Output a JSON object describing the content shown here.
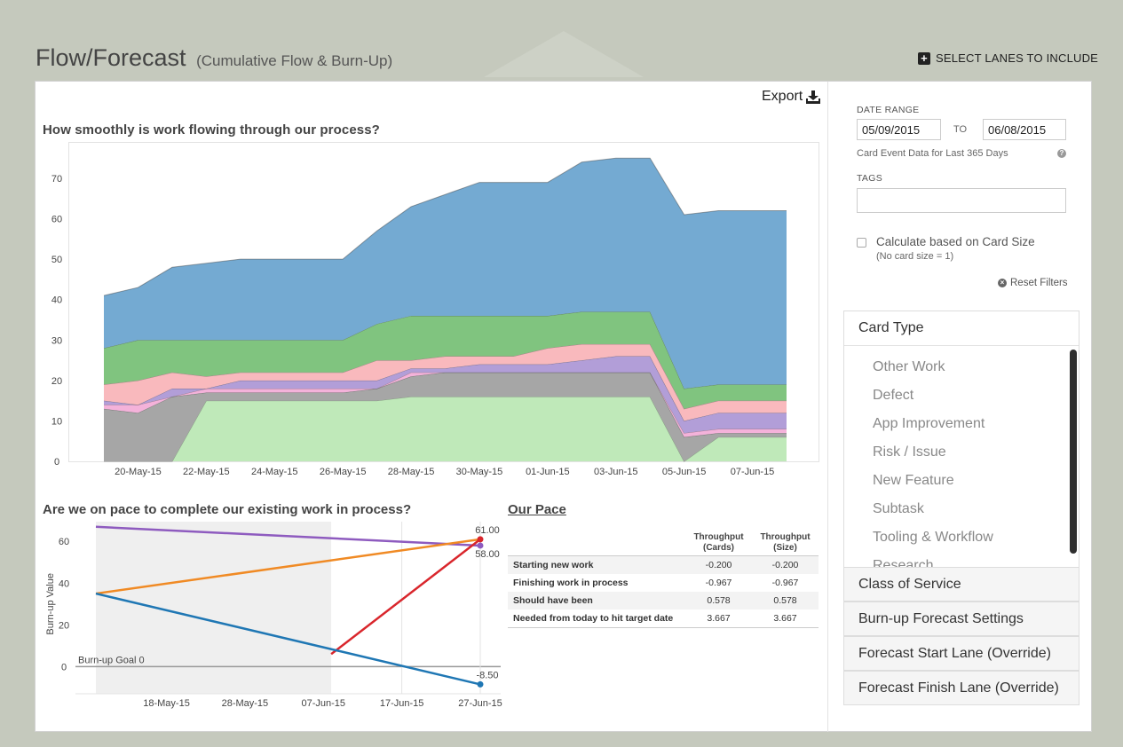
{
  "header": {
    "title": "Flow/Forecast",
    "subtitle": "(Cumulative Flow & Burn-Up)",
    "select_lanes": "SELECT LANES TO INCLUDE"
  },
  "export_label": "Export",
  "cf_heading": "How smoothly is work flowing through our process?",
  "pace_heading": "Are we on pace to complete our existing work in process?",
  "our_pace": {
    "title": "Our Pace",
    "col1": "Throughput (Cards)",
    "col2": "Throughput (Size)",
    "rows": [
      {
        "label": "Starting new work",
        "cards": "-0.200",
        "size": "-0.200"
      },
      {
        "label": "Finishing work in process",
        "cards": "-0.967",
        "size": "-0.967"
      },
      {
        "label": "Should have been",
        "cards": "0.578",
        "size": "0.578"
      },
      {
        "label": "Needed from today to hit target date",
        "cards": "3.667",
        "size": "3.667"
      }
    ]
  },
  "filters": {
    "date_range_label": "DATE RANGE",
    "date_from": "05/09/2015",
    "to_label": "TO",
    "date_to": "06/08/2015",
    "card_event_note": "Card Event Data for Last 365 Days",
    "help_glyph": "?",
    "tags_label": "TAGS",
    "calc_label": "Calculate based on Card Size",
    "no_card_note": "(No card size = 1)",
    "reset_label": "Reset Filters"
  },
  "accordion": {
    "card_type": {
      "title": "Card Type",
      "items": [
        "Other Work",
        "Defect",
        "App Improvement",
        "Risk / Issue",
        "New Feature",
        "Subtask",
        "Tooling & Workflow",
        "Research"
      ]
    },
    "sections": [
      "Class of Service",
      "Burn-up Forecast Settings",
      "Forecast Start Lane (Override)",
      "Forecast Finish Lane (Override)"
    ]
  },
  "chart_data": [
    {
      "type": "area",
      "stacked": true,
      "y_ticks": [
        0,
        10,
        20,
        30,
        40,
        50,
        60,
        70
      ],
      "ylim": [
        0,
        79
      ],
      "x": [
        "19-May-15",
        "20-May-15",
        "21-May-15",
        "22-May-15",
        "23-May-15",
        "24-May-15",
        "25-May-15",
        "26-May-15",
        "27-May-15",
        "28-May-15",
        "29-May-15",
        "30-May-15",
        "31-May-15",
        "01-Jun-15",
        "02-Jun-15",
        "03-Jun-15",
        "04-Jun-15",
        "05-Jun-15",
        "06-Jun-15",
        "07-Jun-15",
        "08-Jun-15"
      ],
      "x_tick_labels": [
        "20-May-15",
        "22-May-15",
        "24-May-15",
        "26-May-15",
        "28-May-15",
        "30-May-15",
        "01-Jun-15",
        "03-Jun-15",
        "05-Jun-15",
        "07-Jun-15"
      ],
      "colors": [
        "#bfe9b9",
        "#a6a6a6",
        "#f4b2da",
        "#b29ed8",
        "#f9b9bd",
        "#80c47f",
        "#74aad2"
      ],
      "series": [
        {
          "values": [
            0,
            0,
            0,
            15,
            15,
            15,
            15,
            15,
            15,
            16,
            16,
            16,
            16,
            16,
            16,
            16,
            16,
            0,
            6,
            6,
            6
          ]
        },
        {
          "values": [
            13,
            12,
            16,
            2,
            2,
            2,
            2,
            2,
            3,
            5,
            6,
            6,
            6,
            6,
            6,
            6,
            6,
            6,
            1,
            1,
            1
          ]
        },
        {
          "values": [
            1,
            2,
            0,
            1,
            1,
            1,
            1,
            1,
            0,
            1,
            0,
            0,
            0,
            0,
            0,
            0,
            0,
            1,
            1,
            1,
            1
          ]
        },
        {
          "values": [
            1,
            0,
            2,
            0,
            2,
            2,
            2,
            2,
            2,
            1,
            1,
            2,
            2,
            2,
            3,
            4,
            4,
            3,
            4,
            4,
            4
          ]
        },
        {
          "values": [
            4,
            6,
            4,
            3,
            2,
            2,
            2,
            2,
            5,
            2,
            3,
            2,
            2,
            4,
            4,
            3,
            3,
            3,
            3,
            3,
            3
          ]
        },
        {
          "values": [
            9,
            10,
            8,
            9,
            8,
            8,
            8,
            8,
            9,
            11,
            10,
            10,
            10,
            8,
            8,
            8,
            8,
            5,
            4,
            4,
            4
          ]
        },
        {
          "values": [
            13,
            13,
            18,
            19,
            20,
            20,
            20,
            20,
            23,
            27,
            30,
            33,
            33,
            33,
            37,
            38,
            38,
            43,
            43,
            43,
            43
          ]
        }
      ]
    },
    {
      "type": "line",
      "ylabel": "Burn-up Value",
      "y_ticks": [
        0,
        20,
        40,
        60
      ],
      "ylim": [
        -13,
        72
      ],
      "x_tick_labels": [
        "18-May-15",
        "28-May-15",
        "07-Jun-15",
        "17-Jun-15",
        "27-Jun-15"
      ],
      "goal_label": "Burn-up Goal 0",
      "series": [
        {
          "color": "#8e5bbf",
          "points": [
            [
              "09-May-15",
              67
            ],
            [
              "27-Jun-15",
              58
            ]
          ],
          "end_label": "58.00"
        },
        {
          "color": "#f08a24",
          "points": [
            [
              "09-May-15",
              35
            ],
            [
              "27-Jun-15",
              61
            ]
          ]
        },
        {
          "color": "#d9262c",
          "points": [
            [
              "08-Jun-15",
              6
            ],
            [
              "27-Jun-15",
              61
            ]
          ],
          "end_label": "61.00"
        },
        {
          "color": "#1f77b4",
          "points": [
            [
              "09-May-15",
              35
            ],
            [
              "27-Jun-15",
              -8.5
            ]
          ],
          "end_label": "-8.50"
        }
      ]
    }
  ]
}
